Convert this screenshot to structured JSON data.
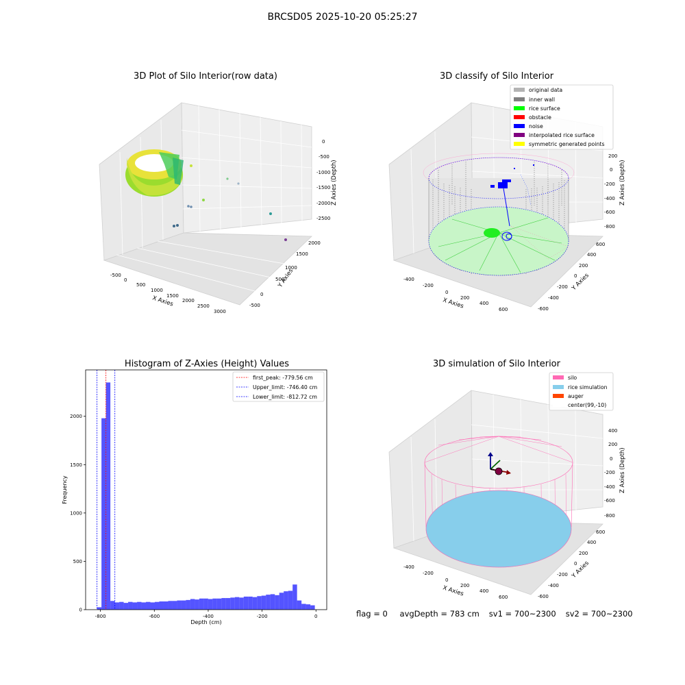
{
  "figure_title": "BRCSD05 2025-10-20 05:25:27",
  "panels": {
    "raw": {
      "title": "3D Plot of Silo Interior(row data)",
      "xlabel": "X Axies",
      "ylabel": "Y Axies",
      "zlabel": "Z Axies (Depth)",
      "xticks": [
        "-500",
        "0",
        "500",
        "1000",
        "1500",
        "2000",
        "2500",
        "3000"
      ],
      "yticks": [
        "-500",
        "0",
        "500",
        "1000",
        "1500",
        "2000"
      ],
      "zticks": [
        "0",
        "-500",
        "-1000",
        "-1500",
        "-2000",
        "-2500"
      ]
    },
    "classify": {
      "title": "3D classify of Silo Interior",
      "xlabel": "X Axies",
      "ylabel": "Y Axies",
      "zlabel": "Z Axies (Depth)",
      "xticks": [
        "-400",
        "-200",
        "0",
        "200",
        "400",
        "600"
      ],
      "yticks": [
        "-600",
        "-400",
        "-200",
        "0",
        "200",
        "400",
        "600"
      ],
      "zticks": [
        "200",
        "0",
        "-200",
        "-400",
        "-600",
        "-800"
      ],
      "legend": [
        {
          "label": "original data",
          "color": "#b3b3b3"
        },
        {
          "label": "inner wall",
          "color": "#808080"
        },
        {
          "label": "rice surface",
          "color": "#00ff00"
        },
        {
          "label": "obstacle",
          "color": "#ff0000"
        },
        {
          "label": "noise",
          "color": "#0000ff"
        },
        {
          "label": "interpolated rice surface",
          "color": "#800080"
        },
        {
          "label": "symmetric generated points",
          "color": "#ffff00"
        }
      ]
    },
    "simulation": {
      "title": "3D simulation of Silo Interior",
      "xlabel": "X Axies",
      "ylabel": "Y Axies",
      "zlabel": "Z Axies (Depth)",
      "xticks": [
        "-400",
        "-200",
        "0",
        "200",
        "400",
        "600"
      ],
      "yticks": [
        "-600",
        "-400",
        "-200",
        "0",
        "200",
        "400",
        "600"
      ],
      "zticks": [
        "400",
        "200",
        "0",
        "-200",
        "-400",
        "-600",
        "-800"
      ],
      "legend": [
        {
          "label": "silo",
          "color": "#ff69b4"
        },
        {
          "label": "rice simulation",
          "color": "#87ceeb"
        },
        {
          "label": "auger",
          "color": "#ff4500"
        },
        {
          "label": "center(99,-10)",
          "color": "#ffffff"
        }
      ]
    }
  },
  "status": {
    "flag": "flag = 0",
    "avg_depth": "avgDepth = 783 cm",
    "sv1": "sv1 = 700~2300",
    "sv2": "sv2 = 700~2300"
  },
  "colors": {
    "histogram_bar": "#0000ff",
    "bar_opacity": 0.67
  },
  "chart_data": {
    "type": "bar",
    "title": "Histogram of Z-Axies (Height) Values",
    "xlabel": "Depth (cm)",
    "ylabel": "Frequency",
    "xlim": [
      -855,
      40
    ],
    "ylim": [
      0,
      2480
    ],
    "xticks": [
      -800,
      -600,
      -400,
      -200,
      0
    ],
    "yticks": [
      0,
      500,
      1000,
      1500,
      2000
    ],
    "bin_width": 16.5,
    "bin_starts": [
      -812.7,
      -796.2,
      -779.7,
      -763.2,
      -746.7,
      -730.2,
      -713.7,
      -697.2,
      -680.7,
      -664.2,
      -647.7,
      -631.2,
      -614.7,
      -598.2,
      -581.7,
      -565.2,
      -548.7,
      -532.2,
      -515.7,
      -499.2,
      -482.7,
      -466.2,
      -449.7,
      -433.2,
      -416.7,
      -400.2,
      -383.7,
      -367.2,
      -350.7,
      -334.2,
      -317.7,
      -301.2,
      -284.7,
      -268.2,
      -251.7,
      -235.2,
      -218.7,
      -202.2,
      -185.7,
      -169.2,
      -152.7,
      -136.2,
      -119.7,
      -103.2,
      -86.7,
      -70.2,
      -53.7,
      -37.2,
      -20.7
    ],
    "frequencies": [
      25,
      1980,
      2350,
      90,
      75,
      80,
      70,
      80,
      75,
      80,
      75,
      80,
      75,
      80,
      85,
      85,
      90,
      90,
      95,
      95,
      100,
      110,
      105,
      115,
      115,
      110,
      115,
      115,
      120,
      120,
      125,
      130,
      125,
      135,
      135,
      130,
      140,
      145,
      155,
      160,
      150,
      175,
      190,
      195,
      260,
      95,
      60,
      55,
      45
    ],
    "lines": [
      {
        "label": "first_peak: -779.56 cm",
        "x": -779.56,
        "color": "#ff0000"
      },
      {
        "label": "Upper_limit: -746.40 cm",
        "x": -746.4,
        "color": "#0000ff"
      },
      {
        "label": "Lower_limit: -812.72 cm",
        "x": -812.72,
        "color": "#0000ff"
      }
    ]
  }
}
